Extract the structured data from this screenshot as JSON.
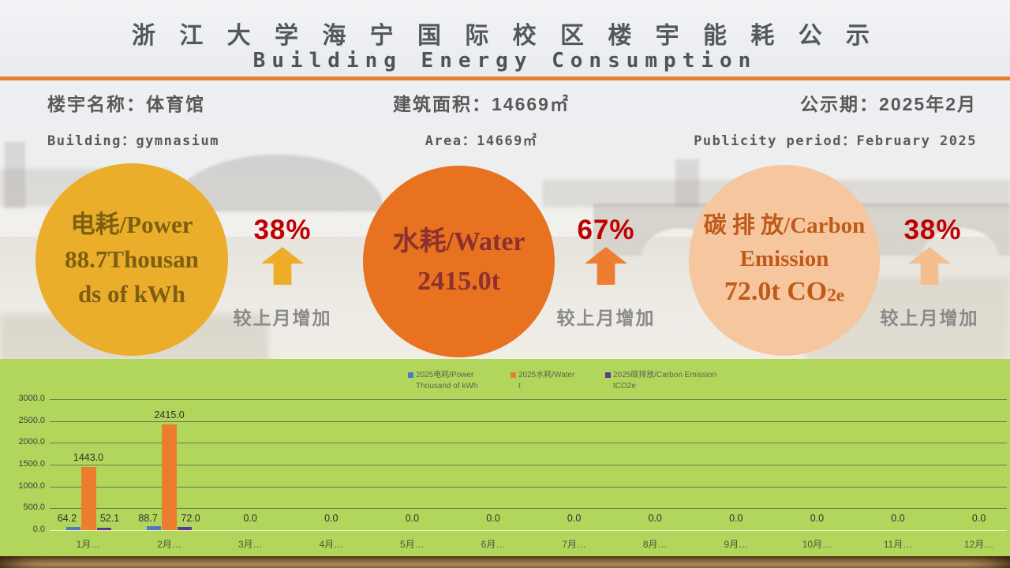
{
  "header": {
    "title_zh": "浙 江 大 学 海 宁 国 际 校 区 楼 宇 能 耗 公 示",
    "title_en": "Building Energy Consumption"
  },
  "info": {
    "building_zh": "楼宇名称：体育馆",
    "building_en": "Building：gymnasium",
    "area_zh": "建筑面积：14669㎡",
    "area_en": "Area：14669㎡",
    "period_zh": "公示期：2025年2月",
    "period_en": "Publicity period：February 2025"
  },
  "cards": [
    {
      "l1": "电耗/Power",
      "l2": "88.7Thousan",
      "l3": "ds of kWh",
      "percent": "38%",
      "note": "较上月增加",
      "fill": "#EAAE2B",
      "text_color": "#7E5E11",
      "arrow_color": "#EFAD27"
    },
    {
      "l1": "水耗/Water",
      "l2": "2415.0t",
      "percent": "67%",
      "note": "较上月增加",
      "fill": "#E8721F",
      "text_color": "#8C3030",
      "arrow_color": "#ED7D31"
    },
    {
      "l1": "碳 排 放/Carbon",
      "l2": "Emission",
      "l3main": "72.0t CO",
      "l3sub": "2e",
      "percent": "38%",
      "note": "较上月增加",
      "fill": "#F6C79E",
      "text_color": "#C05A1A",
      "arrow_color": "#F5BE8E"
    }
  ],
  "percent_color": "#C00000",
  "chart_data": {
    "type": "bar",
    "categories": [
      "1月…",
      "2月…",
      "3月…",
      "4月…",
      "5月…",
      "6月…",
      "7月…",
      "8月…",
      "9月…",
      "10月…",
      "11月…",
      "12月…"
    ],
    "series": [
      {
        "name": "2025电耗/Power Thousand of kWh",
        "color": "#4B79C5",
        "values": [
          64.2,
          88.7,
          0,
          0,
          0,
          0,
          0,
          0,
          0,
          0,
          0,
          0
        ]
      },
      {
        "name": "2025水耗/Water t",
        "color": "#EC7D2F",
        "values": [
          1443.0,
          2415.0,
          0,
          0,
          0,
          0,
          0,
          0,
          0,
          0,
          0,
          0
        ]
      },
      {
        "name": "2025碳排放/Carbon Emission tCO2e",
        "color": "#5E3794",
        "values": [
          52.1,
          72.0,
          0,
          0,
          0,
          0,
          0,
          0,
          0,
          0,
          0,
          0
        ]
      }
    ],
    "legend": [
      {
        "line1": "2025电耗/Power",
        "line2": "Thousand of kWh"
      },
      {
        "line1": "2025水耗/Water",
        "line2": "t"
      },
      {
        "line1": "2025碳排放/Carbon Emission",
        "line2": "tCO2e"
      }
    ],
    "title": "",
    "xlabel": "",
    "ylabel": "",
    "ylim": [
      0,
      3000
    ],
    "ytick_step": 500,
    "grid": true,
    "legend_position": "top-center",
    "background": "#B2D65C"
  }
}
